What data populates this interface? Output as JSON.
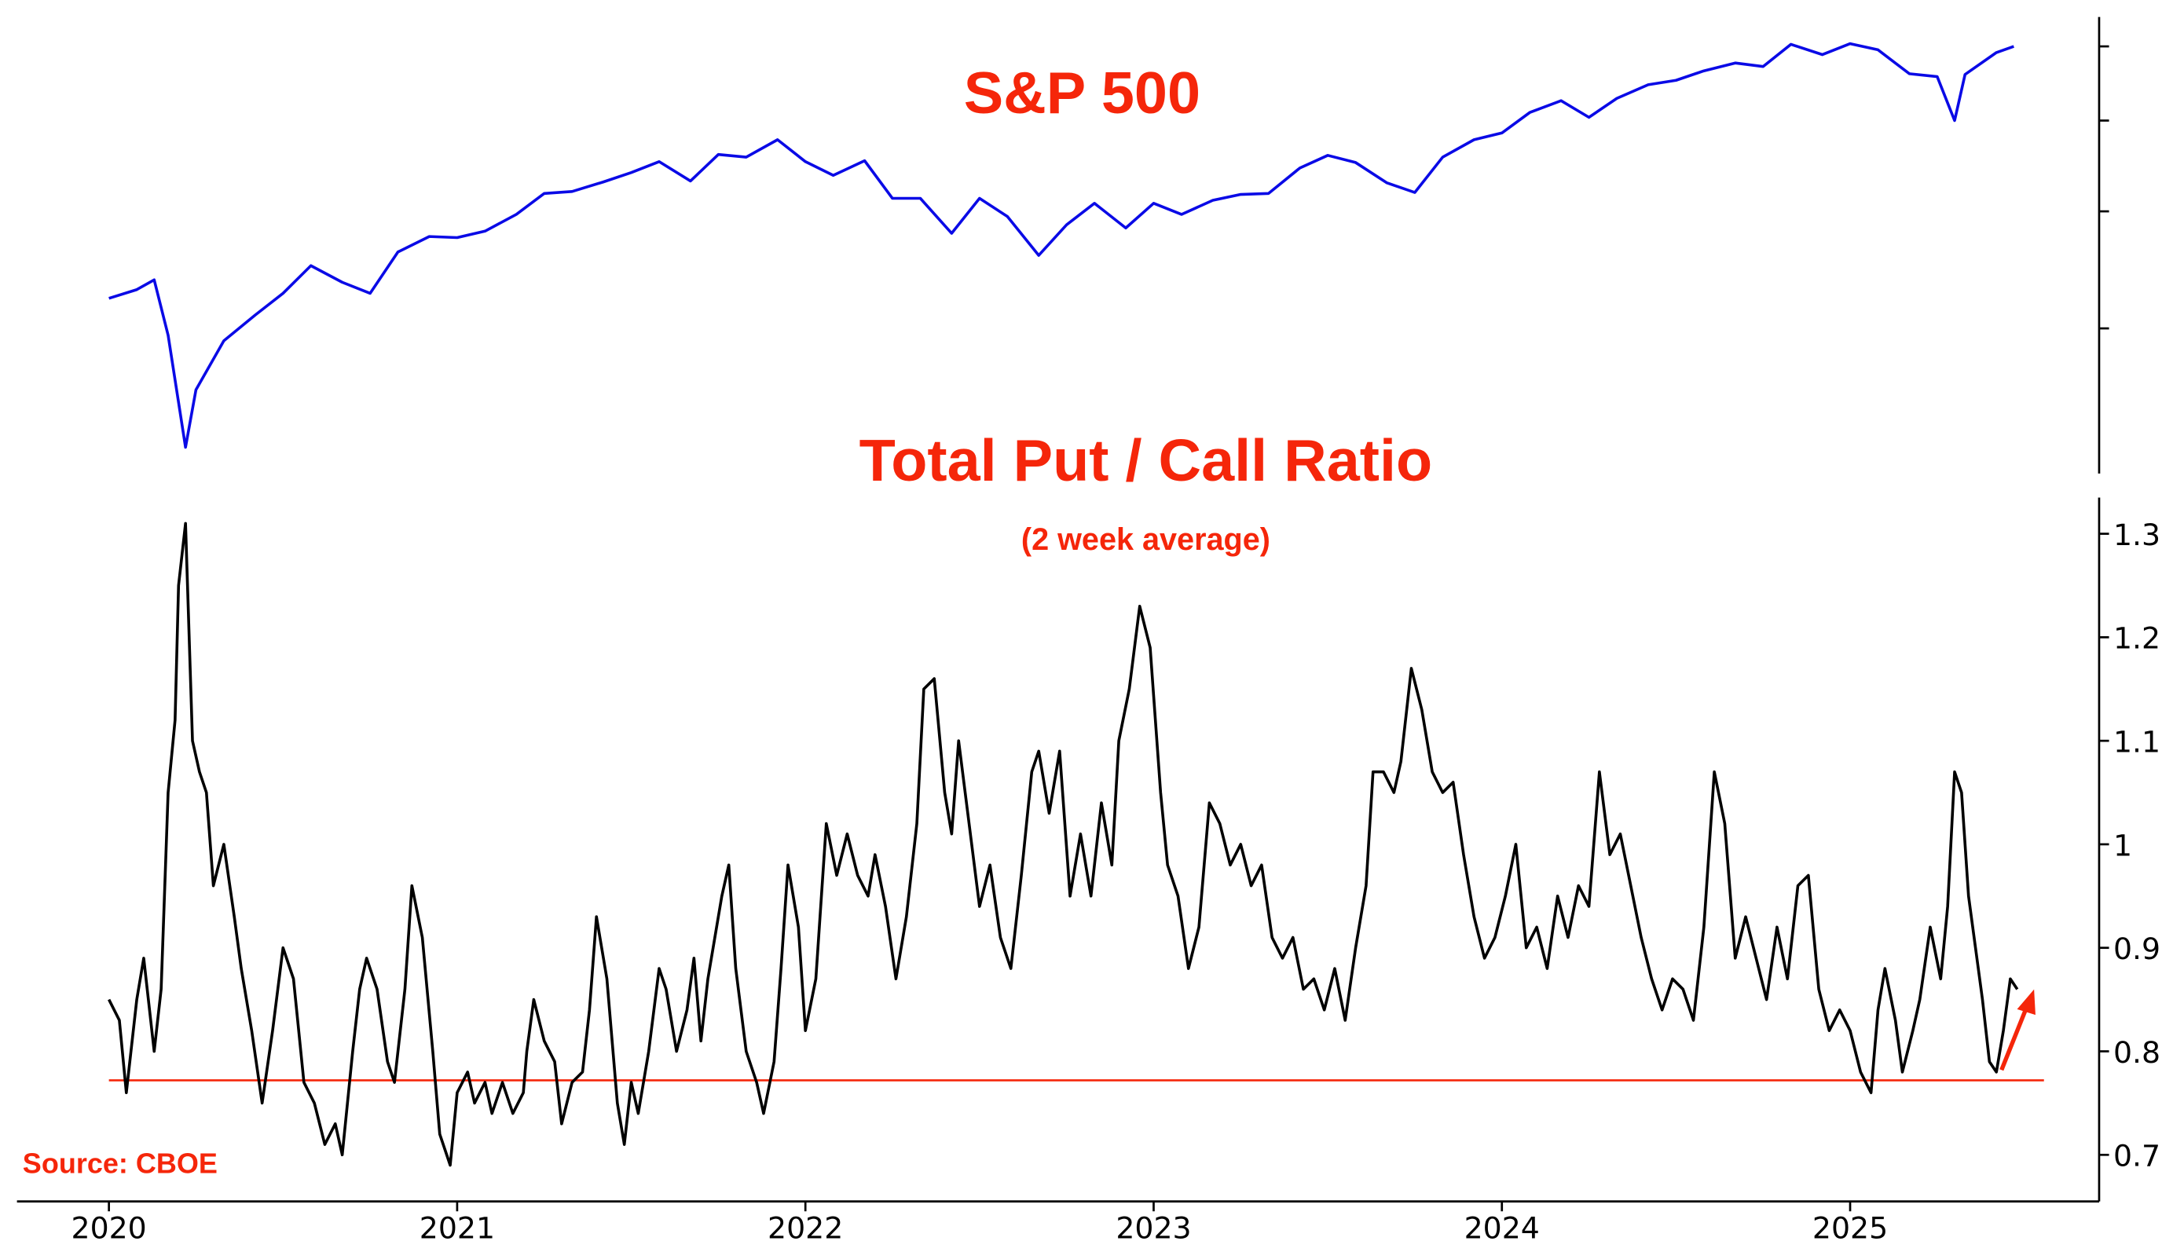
{
  "chart_data": [
    {
      "type": "line",
      "title": "S&P 500",
      "color": "#0a0ae6",
      "log_scale": true,
      "xlim": [
        2019.736,
        2025.715
      ],
      "ylim": [
        2100,
        6450
      ],
      "yticks": [
        3000,
        4000,
        5000,
        6000
      ],
      "x": [
        2020.0,
        2020.08,
        2020.13,
        2020.17,
        2020.22,
        2020.25,
        2020.33,
        2020.42,
        2020.5,
        2020.58,
        2020.67,
        2020.75,
        2020.83,
        2020.92,
        2021.0,
        2021.08,
        2021.17,
        2021.25,
        2021.33,
        2021.42,
        2021.5,
        2021.58,
        2021.67,
        2021.75,
        2021.83,
        2021.92,
        2022.0,
        2022.08,
        2022.17,
        2022.25,
        2022.33,
        2022.42,
        2022.5,
        2022.58,
        2022.67,
        2022.75,
        2022.83,
        2022.92,
        2023.0,
        2023.08,
        2023.17,
        2023.25,
        2023.33,
        2023.42,
        2023.5,
        2023.58,
        2023.67,
        2023.75,
        2023.83,
        2023.92,
        2024.0,
        2024.08,
        2024.17,
        2024.25,
        2024.33,
        2024.42,
        2024.5,
        2024.58,
        2024.67,
        2024.75,
        2024.83,
        2024.92,
        2025.0,
        2025.08,
        2025.17,
        2025.25,
        2025.3,
        2025.33,
        2025.42,
        2025.47
      ],
      "values": [
        3230,
        3300,
        3380,
        2950,
        2240,
        2580,
        2910,
        3100,
        3270,
        3500,
        3360,
        3270,
        3620,
        3760,
        3750,
        3810,
        3970,
        4180,
        4200,
        4300,
        4400,
        4520,
        4310,
        4600,
        4570,
        4770,
        4520,
        4370,
        4530,
        4130,
        4130,
        3790,
        4130,
        3950,
        3590,
        3870,
        4080,
        3840,
        4080,
        3970,
        4110,
        4170,
        4180,
        4450,
        4590,
        4510,
        4290,
        4190,
        4570,
        4770,
        4850,
        5100,
        5250,
        5040,
        5280,
        5460,
        5520,
        5650,
        5760,
        5710,
        6030,
        5880,
        6040,
        5950,
        5610,
        5570,
        5000,
        5600,
        5910,
        6000
      ]
    },
    {
      "type": "line",
      "title": "Total Put / Call Ratio",
      "subtitle": "(2 week average)",
      "source": "Source: CBOE",
      "color": "#000000",
      "xlim": [
        2019.736,
        2025.715
      ],
      "xticks": [
        2020,
        2021,
        2022,
        2023,
        2024,
        2025
      ],
      "ylim": [
        0.655,
        1.335
      ],
      "yticks": [
        0.7,
        0.8,
        0.9,
        1.0,
        1.1,
        1.2,
        1.3
      ],
      "reference_line": {
        "value": 0.772,
        "color": "#f5260a"
      },
      "x": [
        2020.0,
        2020.03,
        2020.05,
        2020.08,
        2020.1,
        2020.13,
        2020.15,
        2020.17,
        2020.19,
        2020.2,
        2020.22,
        2020.24,
        2020.26,
        2020.28,
        2020.3,
        2020.33,
        2020.36,
        2020.38,
        2020.41,
        2020.44,
        2020.47,
        2020.5,
        2020.53,
        2020.56,
        2020.59,
        2020.62,
        2020.65,
        2020.67,
        2020.7,
        2020.72,
        2020.74,
        2020.77,
        2020.8,
        2020.82,
        2020.85,
        2020.87,
        2020.9,
        2020.93,
        2020.95,
        2020.98,
        2021.0,
        2021.03,
        2021.05,
        2021.08,
        2021.1,
        2021.13,
        2021.16,
        2021.19,
        2021.2,
        2021.22,
        2021.25,
        2021.28,
        2021.3,
        2021.33,
        2021.36,
        2021.38,
        2021.4,
        2021.43,
        2021.46,
        2021.48,
        2021.5,
        2021.52,
        2021.55,
        2021.58,
        2021.6,
        2021.63,
        2021.66,
        2021.68,
        2021.7,
        2021.72,
        2021.74,
        2021.76,
        2021.78,
        2021.8,
        2021.83,
        2021.86,
        2021.88,
        2021.91,
        2021.93,
        2021.95,
        2021.98,
        2022.0,
        2022.03,
        2022.06,
        2022.09,
        2022.12,
        2022.15,
        2022.18,
        2022.2,
        2022.23,
        2022.26,
        2022.29,
        2022.32,
        2022.34,
        2022.37,
        2022.4,
        2022.42,
        2022.44,
        2022.47,
        2022.5,
        2022.53,
        2022.56,
        2022.59,
        2022.62,
        2022.65,
        2022.67,
        2022.7,
        2022.73,
        2022.76,
        2022.79,
        2022.82,
        2022.85,
        2022.88,
        2022.9,
        2022.93,
        2022.96,
        2022.99,
        2023.02,
        2023.04,
        2023.07,
        2023.1,
        2023.13,
        2023.16,
        2023.19,
        2023.22,
        2023.25,
        2023.28,
        2023.31,
        2023.34,
        2023.37,
        2023.4,
        2023.43,
        2023.46,
        2023.49,
        2023.52,
        2023.55,
        2023.58,
        2023.61,
        2023.63,
        2023.66,
        2023.69,
        2023.71,
        2023.74,
        2023.77,
        2023.8,
        2023.83,
        2023.86,
        2023.89,
        2023.92,
        2023.95,
        2023.98,
        2024.01,
        2024.04,
        2024.07,
        2024.1,
        2024.13,
        2024.16,
        2024.19,
        2024.22,
        2024.25,
        2024.28,
        2024.31,
        2024.34,
        2024.37,
        2024.4,
        2024.43,
        2024.46,
        2024.49,
        2024.52,
        2024.55,
        2024.58,
        2024.61,
        2024.64,
        2024.67,
        2024.7,
        2024.73,
        2024.76,
        2024.79,
        2024.82,
        2024.85,
        2024.88,
        2024.91,
        2024.94,
        2024.97,
        2025.0,
        2025.03,
        2025.06,
        2025.08,
        2025.1,
        2025.13,
        2025.15,
        2025.18,
        2025.2,
        2025.23,
        2025.26,
        2025.28,
        2025.3,
        2025.32,
        2025.34,
        2025.36,
        2025.38,
        2025.4,
        2025.42,
        2025.44,
        2025.46,
        2025.48
      ],
      "values": [
        0.85,
        0.83,
        0.76,
        0.85,
        0.89,
        0.8,
        0.86,
        1.05,
        1.12,
        1.25,
        1.31,
        1.1,
        1.07,
        1.05,
        0.96,
        1.0,
        0.93,
        0.88,
        0.82,
        0.75,
        0.82,
        0.9,
        0.87,
        0.77,
        0.75,
        0.71,
        0.73,
        0.7,
        0.8,
        0.86,
        0.89,
        0.86,
        0.79,
        0.77,
        0.86,
        0.96,
        0.91,
        0.8,
        0.72,
        0.69,
        0.76,
        0.78,
        0.75,
        0.77,
        0.74,
        0.77,
        0.74,
        0.76,
        0.8,
        0.85,
        0.81,
        0.79,
        0.73,
        0.77,
        0.78,
        0.84,
        0.93,
        0.87,
        0.75,
        0.71,
        0.77,
        0.74,
        0.8,
        0.88,
        0.86,
        0.8,
        0.84,
        0.89,
        0.81,
        0.87,
        0.91,
        0.95,
        0.98,
        0.88,
        0.8,
        0.77,
        0.74,
        0.79,
        0.88,
        0.98,
        0.92,
        0.82,
        0.87,
        1.02,
        0.97,
        1.01,
        0.97,
        0.95,
        0.99,
        0.94,
        0.87,
        0.93,
        1.02,
        1.15,
        1.16,
        1.05,
        1.01,
        1.1,
        1.02,
        0.94,
        0.98,
        0.91,
        0.88,
        0.97,
        1.07,
        1.09,
        1.03,
        1.09,
        0.95,
        1.01,
        0.95,
        1.04,
        0.98,
        1.1,
        1.15,
        1.23,
        1.19,
        1.05,
        0.98,
        0.95,
        0.88,
        0.92,
        1.04,
        1.02,
        0.98,
        1.0,
        0.96,
        0.98,
        0.91,
        0.89,
        0.91,
        0.86,
        0.87,
        0.84,
        0.88,
        0.83,
        0.9,
        0.96,
        1.07,
        1.07,
        1.05,
        1.08,
        1.17,
        1.13,
        1.07,
        1.05,
        1.06,
        0.99,
        0.93,
        0.89,
        0.91,
        0.95,
        1.0,
        0.9,
        0.92,
        0.88,
        0.95,
        0.91,
        0.96,
        0.94,
        1.07,
        0.99,
        1.01,
        0.96,
        0.91,
        0.87,
        0.84,
        0.87,
        0.86,
        0.83,
        0.92,
        1.07,
        1.02,
        0.89,
        0.93,
        0.89,
        0.85,
        0.92,
        0.87,
        0.96,
        0.97,
        0.86,
        0.82,
        0.84,
        0.82,
        0.78,
        0.76,
        0.84,
        0.88,
        0.83,
        0.78,
        0.82,
        0.85,
        0.92,
        0.87,
        0.94,
        1.07,
        1.05,
        0.95,
        0.9,
        0.85,
        0.79,
        0.78,
        0.82,
        0.87,
        0.86
      ]
    }
  ]
}
